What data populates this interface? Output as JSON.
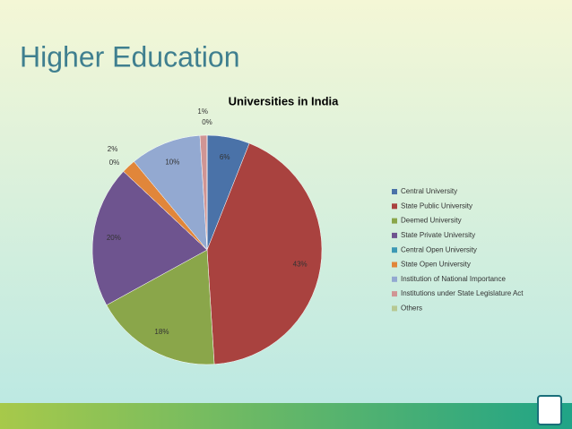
{
  "header": {
    "title": "Higher Education"
  },
  "chart_data": {
    "type": "pie",
    "title": "Universities in India",
    "categories": [
      "Central University",
      "State Public University",
      "Deemed University",
      "State Private University",
      "Central Open University",
      "State Open University",
      "Institution of National Importance",
      "Institutions under State Legislature Act",
      "Others"
    ],
    "values": [
      6,
      43,
      18,
      20,
      0,
      2,
      10,
      1,
      0
    ],
    "value_labels": [
      "6%",
      "43%",
      "18%",
      "20%",
      "0%",
      "2%",
      "10%",
      "1%",
      "0%"
    ],
    "colors": [
      "#4a72a8",
      "#a9423f",
      "#8aa64a",
      "#6e548f",
      "#3c99b4",
      "#e1863a",
      "#93a9d1",
      "#d09594",
      "#b7c993"
    ],
    "legend": "right"
  }
}
